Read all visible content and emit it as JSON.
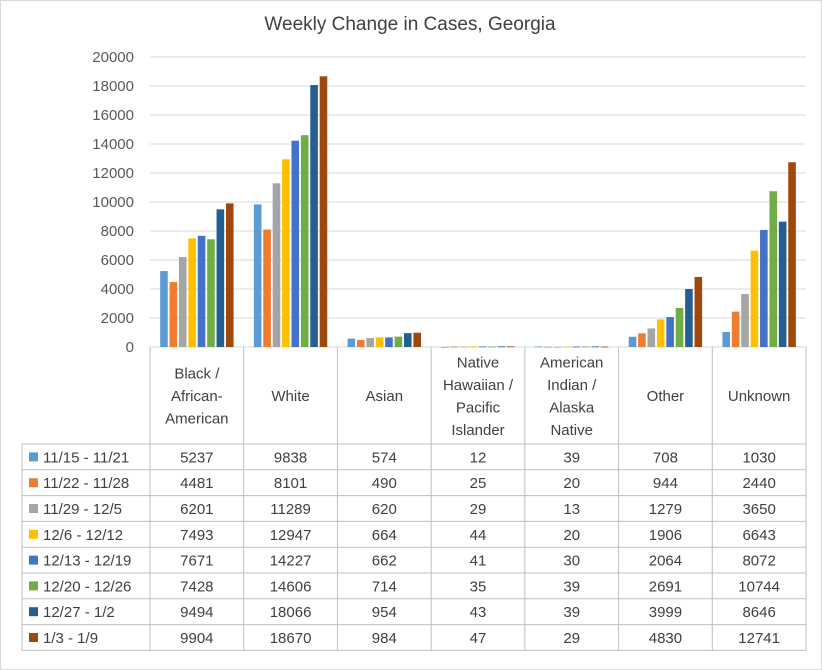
{
  "chart_data": {
    "type": "bar",
    "title": "Weekly Change in Cases, Georgia",
    "xlabel": "",
    "ylabel": "",
    "ylim": [
      0,
      20000
    ],
    "yticks": [
      0,
      2000,
      4000,
      6000,
      8000,
      10000,
      12000,
      14000,
      16000,
      18000,
      20000
    ],
    "categories": [
      [
        "Black /",
        "African-",
        "American"
      ],
      [
        "White"
      ],
      [
        "Asian"
      ],
      [
        "Native",
        "Hawaiian /",
        "Pacific",
        "Islander"
      ],
      [
        "American",
        "Indian /",
        "Alaska",
        "Native"
      ],
      [
        "Other"
      ],
      [
        "Unknown"
      ]
    ],
    "grid": "horizontal",
    "legend": "data-table",
    "series": [
      {
        "name": "11/15 - 11/21",
        "color": "#5b9bd5",
        "values": [
          5237,
          9838,
          574,
          12,
          39,
          708,
          1030
        ]
      },
      {
        "name": "11/22 - 11/28",
        "color": "#ed7d31",
        "values": [
          4481,
          8101,
          490,
          25,
          20,
          944,
          2440
        ]
      },
      {
        "name": "11/29 - 12/5",
        "color": "#a5a5a5",
        "values": [
          6201,
          11289,
          620,
          29,
          13,
          1279,
          3650
        ]
      },
      {
        "name": "12/6 - 12/12",
        "color": "#ffc000",
        "values": [
          7493,
          12947,
          664,
          44,
          20,
          1906,
          6643
        ]
      },
      {
        "name": "12/13 - 12/19",
        "color": "#4472c4",
        "values": [
          7671,
          14227,
          662,
          41,
          30,
          2064,
          8072
        ]
      },
      {
        "name": "12/20 - 12/26",
        "color": "#70ad47",
        "values": [
          7428,
          14606,
          714,
          35,
          39,
          2691,
          10744
        ]
      },
      {
        "name": "12/27 - 1/2",
        "color": "#255e91",
        "values": [
          9494,
          18066,
          954,
          43,
          39,
          3999,
          8646
        ]
      },
      {
        "name": "1/3 - 1/9",
        "color": "#9e480e",
        "values": [
          9904,
          18670,
          984,
          47,
          29,
          4830,
          12741
        ]
      }
    ]
  }
}
